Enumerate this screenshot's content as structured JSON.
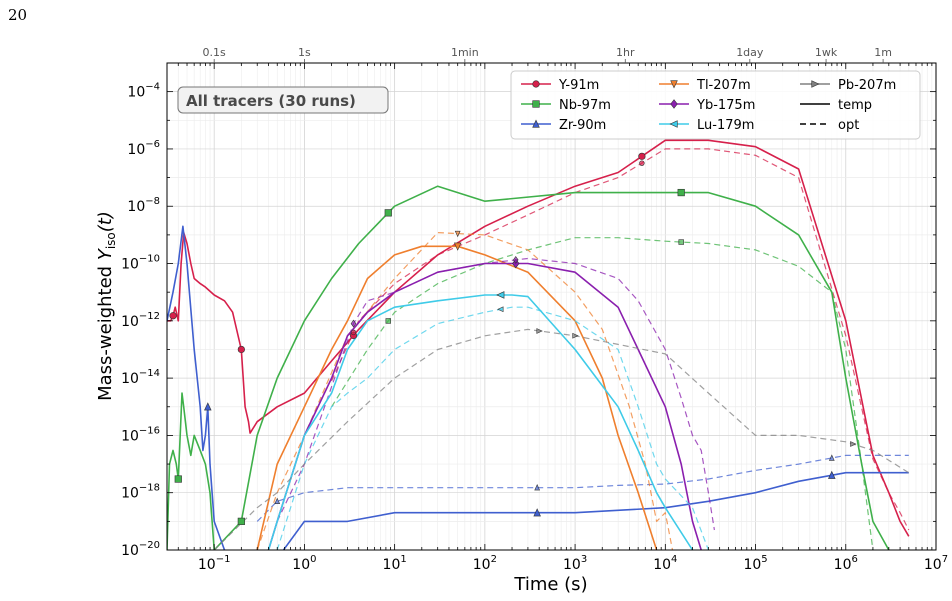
{
  "page_number": "20",
  "chart_data": {
    "type": "line",
    "annotation": "All tracers (30 runs)",
    "xlabel": "Time (s)",
    "ylabel_main": "Mass-weighted ",
    "ylabel_var": "Y",
    "ylabel_sub": "iso",
    "ylabel_arg": "(t)",
    "x_scale": "log",
    "y_scale": "log",
    "xlim": [
      0.03,
      10000000
    ],
    "ylim": [
      1e-20,
      0.001
    ],
    "grid": true,
    "legend_position": "top-right",
    "x_ticks": [
      {
        "value": 0.1,
        "base": "10",
        "exp": "−1"
      },
      {
        "value": 1,
        "base": "10",
        "exp": "0"
      },
      {
        "value": 10,
        "base": "10",
        "exp": "1"
      },
      {
        "value": 100,
        "base": "10",
        "exp": "2"
      },
      {
        "value": 1000,
        "base": "10",
        "exp": "3"
      },
      {
        "value": 10000,
        "base": "10",
        "exp": "4"
      },
      {
        "value": 100000,
        "base": "10",
        "exp": "5"
      },
      {
        "value": 1000000,
        "base": "10",
        "exp": "6"
      },
      {
        "value": 10000000,
        "base": "10",
        "exp": "7"
      }
    ],
    "y_ticks": [
      {
        "value": 1e-20,
        "base": "10",
        "exp": "−20"
      },
      {
        "value": 1e-18,
        "base": "10",
        "exp": "−18"
      },
      {
        "value": 1e-16,
        "base": "10",
        "exp": "−16"
      },
      {
        "value": 1e-14,
        "base": "10",
        "exp": "−14"
      },
      {
        "value": 1e-12,
        "base": "10",
        "exp": "−12"
      },
      {
        "value": 1e-10,
        "base": "10",
        "exp": "−10"
      },
      {
        "value": 1e-08,
        "base": "10",
        "exp": "−8"
      },
      {
        "value": 1e-06,
        "base": "10",
        "exp": "−6"
      },
      {
        "value": 0.0001,
        "base": "10",
        "exp": "−4"
      }
    ],
    "top_axis": [
      {
        "label": "0.1s",
        "value": 0.1
      },
      {
        "label": "1s",
        "value": 1
      },
      {
        "label": "1min",
        "value": 60
      },
      {
        "label": "1hr",
        "value": 3600
      },
      {
        "label": "1day",
        "value": 86400
      },
      {
        "label": "1wk",
        "value": 604800
      },
      {
        "label": "1m",
        "value": 2592000
      }
    ],
    "legend": [
      {
        "name": "Y-91m",
        "color": "#d6204b",
        "marker": "circle",
        "style": "solid"
      },
      {
        "name": "Nb-97m",
        "color": "#3fb04a",
        "marker": "square",
        "style": "solid"
      },
      {
        "name": "Zr-90m",
        "color": "#3f5fcf",
        "marker": "triangle-up",
        "style": "solid"
      },
      {
        "name": "Tl-207m",
        "color": "#ef7f2e",
        "marker": "triangle-down",
        "style": "solid"
      },
      {
        "name": "Yb-175m",
        "color": "#8a1fae",
        "marker": "diamond",
        "style": "solid"
      },
      {
        "name": "Lu-179m",
        "color": "#3fcbe8",
        "marker": "triangle-left",
        "style": "solid"
      },
      {
        "name": "Pb-207m",
        "color": "#808080",
        "marker": "triangle-right",
        "style": "solid"
      },
      {
        "name": "temp",
        "color": "#000000",
        "marker": "none",
        "style": "solid"
      },
      {
        "name": "opt",
        "color": "#000000",
        "marker": "none",
        "style": "dashed"
      }
    ],
    "series": [
      {
        "name": "Y-91m",
        "variant": "temp",
        "color": "#d6204b",
        "marker": "circle",
        "marker_at": [
          0.035,
          0.2,
          3.5,
          5500
        ],
        "x": [
          0.03,
          0.033,
          0.035,
          0.037,
          0.04,
          0.043,
          0.046,
          0.05,
          0.055,
          0.06,
          0.07,
          0.08,
          0.1,
          0.13,
          0.16,
          0.2,
          0.22,
          0.24,
          0.25,
          0.3,
          0.5,
          1,
          2,
          4,
          10,
          30,
          100,
          300,
          1000,
          3000,
          10000,
          30000,
          100000,
          300000,
          1000000,
          2000000,
          3000000,
          4000000,
          5000000
        ],
        "y": [
          1e-12,
          1e-12,
          1.5e-12,
          3e-12,
          1e-12,
          1e-10,
          1.2e-09,
          5e-10,
          1e-10,
          3e-11,
          2e-11,
          1.5e-11,
          8e-12,
          5e-12,
          2e-12,
          1e-13,
          1e-15,
          3e-16,
          1.2e-16,
          3e-16,
          1e-15,
          3e-15,
          4e-14,
          5e-13,
          1e-11,
          2e-10,
          2e-09,
          1e-08,
          5e-08,
          1.5e-07,
          2e-06,
          2e-06,
          1.2e-06,
          2e-07,
          1e-12,
          2e-17,
          1e-18,
          1e-19,
          3e-20
        ]
      },
      {
        "name": "Y-91m",
        "variant": "opt",
        "color": "#d6204b",
        "marker": "circle",
        "marker_at": [
          3.5,
          5500
        ],
        "x": [
          2,
          4,
          10,
          30,
          100,
          300,
          1000,
          3000,
          10000,
          30000,
          100000,
          300000,
          1000000,
          2000000,
          3000000,
          4000000,
          5000000
        ],
        "y": [
          8e-15,
          1e-12,
          2e-11,
          2e-10,
          1e-09,
          5e-09,
          3e-08,
          1e-07,
          1e-06,
          1e-06,
          6e-07,
          1e-07,
          3e-13,
          1.5e-17,
          1e-18,
          2e-19,
          5e-20
        ]
      },
      {
        "name": "Nb-97m",
        "variant": "temp",
        "color": "#3fb04a",
        "marker": "square",
        "marker_at": [
          0.04,
          0.2,
          8.5,
          15000
        ],
        "x": [
          0.03,
          0.032,
          0.035,
          0.038,
          0.04,
          0.042,
          0.044,
          0.046,
          0.05,
          0.055,
          0.06,
          0.07,
          0.08,
          0.09,
          0.1,
          0.2,
          0.3,
          0.5,
          1,
          2,
          4,
          10,
          30,
          100,
          1000,
          10000,
          30000,
          100000,
          300000,
          700000,
          1000000,
          1500000,
          2000000,
          3000000
        ],
        "y": [
          1e-20,
          1e-17,
          3e-17,
          1e-17,
          3e-18,
          1e-16,
          3e-15,
          1e-15,
          1e-16,
          2e-17,
          1e-16,
          3e-17,
          1e-17,
          1e-18,
          1e-20,
          1e-19,
          1e-16,
          1e-14,
          1e-12,
          3e-11,
          5e-10,
          1e-08,
          5e-08,
          1.5e-08,
          3e-08,
          3e-08,
          3e-08,
          1e-08,
          1e-09,
          1e-11,
          1e-14,
          1e-17,
          1e-19,
          1e-20
        ]
      },
      {
        "name": "Nb-97m",
        "variant": "opt",
        "color": "#3fb04a",
        "marker": "square",
        "marker_at": [
          8.5,
          15000
        ],
        "x": [
          2,
          5,
          10,
          30,
          100,
          300,
          1000,
          3000,
          10000,
          30000,
          100000,
          300000,
          700000,
          1000000,
          1500000,
          2000000
        ],
        "y": [
          1e-15,
          1e-13,
          2e-12,
          2e-11,
          1e-10,
          3e-10,
          8e-10,
          8e-10,
          6e-10,
          5e-10,
          3e-10,
          8e-11,
          1e-11,
          1e-13,
          1e-17,
          1e-20
        ]
      },
      {
        "name": "Zr-90m",
        "variant": "temp",
        "color": "#3f5fcf",
        "marker": "triangle-up",
        "marker_at": [
          0.085,
          0.5,
          380,
          700000
        ],
        "x": [
          0.03,
          0.035,
          0.04,
          0.045,
          0.05,
          0.06,
          0.07,
          0.075,
          0.08,
          0.085,
          0.09,
          0.1,
          0.13,
          0.3,
          0.5,
          1,
          3,
          10,
          100,
          1000,
          10000,
          30000,
          100000,
          300000,
          1000000,
          5000000
        ],
        "y": [
          1e-12,
          1e-11,
          1e-10,
          2e-09,
          1e-10,
          1e-13,
          1e-15,
          3e-17,
          1e-16,
          1e-15,
          1e-17,
          1e-19,
          1e-20,
          5e-21,
          5e-21,
          1e-19,
          1e-19,
          2e-19,
          2e-19,
          2e-19,
          3e-19,
          5e-19,
          1e-18,
          2.5e-18,
          5e-18,
          5e-18
        ]
      },
      {
        "name": "Zr-90m",
        "variant": "opt",
        "color": "#3f5fcf",
        "marker": "triangle-up",
        "marker_at": [
          0.5,
          380,
          700000
        ],
        "x": [
          0.3,
          0.5,
          1,
          3,
          10,
          100,
          1000,
          3000,
          10000,
          30000,
          100000,
          300000,
          1000000,
          5000000
        ],
        "y": [
          1e-19,
          5e-19,
          1e-18,
          1.5e-18,
          1.5e-18,
          1.5e-18,
          1.5e-18,
          1.8e-18,
          2e-18,
          3e-18,
          6e-18,
          1e-17,
          2e-17,
          2e-17
        ]
      },
      {
        "name": "Tl-207m",
        "variant": "temp",
        "color": "#ef7f2e",
        "marker": "triangle-down",
        "marker_at": [
          50
        ],
        "x": [
          0.3,
          0.5,
          1,
          2,
          3,
          5,
          10,
          20,
          50,
          100,
          300,
          1000,
          2000,
          3000,
          5000,
          8000,
          10000
        ],
        "y": [
          1e-20,
          1e-17,
          1e-15,
          1e-13,
          1e-12,
          3e-11,
          2e-10,
          4e-10,
          4e-10,
          2e-10,
          5e-11,
          1e-12,
          1e-14,
          1e-16,
          1e-18,
          1e-20,
          5e-21
        ]
      },
      {
        "name": "Tl-207m",
        "variant": "opt",
        "color": "#ef7f2e",
        "marker": "triangle-down",
        "marker_at": [
          50
        ],
        "x": [
          0.3,
          0.5,
          1,
          3,
          10,
          30,
          100,
          300,
          1000,
          2000,
          4000,
          6000,
          8000,
          10000,
          12000
        ],
        "y": [
          1e-20,
          1e-18,
          1e-16,
          3e-13,
          3e-11,
          1.2e-09,
          1e-09,
          3e-10,
          1e-11,
          5e-13,
          1e-15,
          1e-17,
          1e-19,
          2e-19,
          1e-20
        ]
      },
      {
        "name": "Yb-175m",
        "variant": "temp",
        "color": "#8a1fae",
        "marker": "diamond",
        "marker_at": [
          220
        ],
        "x": [
          0.4,
          0.5,
          1,
          2,
          3,
          5,
          10,
          30,
          100,
          300,
          1000,
          3000,
          5000,
          10000,
          15000,
          20000,
          25000
        ],
        "y": [
          1e-20,
          1e-19,
          1e-16,
          1e-14,
          3e-13,
          2e-12,
          1e-11,
          5e-11,
          1e-10,
          1e-10,
          5e-11,
          3e-12,
          1e-13,
          1e-15,
          1e-17,
          1e-19,
          1e-20
        ]
      },
      {
        "name": "Yb-175m",
        "variant": "opt",
        "color": "#8a1fae",
        "marker": "diamond",
        "marker_at": [
          3.5,
          220
        ],
        "x": [
          0.4,
          0.5,
          1,
          2,
          3.5,
          5,
          10,
          30,
          100,
          300,
          1000,
          3000,
          5000,
          10000,
          15000,
          20000,
          25000,
          30000,
          35000
        ],
        "y": [
          1e-20,
          1e-19,
          1e-17,
          5e-15,
          8e-13,
          5e-12,
          1e-11,
          5e-11,
          1e-10,
          1.5e-10,
          1e-10,
          3e-11,
          5e-12,
          1e-13,
          2e-15,
          1e-16,
          3e-17,
          1e-18,
          5e-20
        ]
      },
      {
        "name": "Lu-179m",
        "variant": "temp",
        "color": "#3fcbe8",
        "marker": "triangle-left",
        "marker_at": [
          150
        ],
        "x": [
          0.4,
          0.5,
          1,
          2,
          3,
          5,
          10,
          30,
          100,
          200,
          300,
          1000,
          3000,
          5000,
          8000,
          10000,
          20000,
          30000
        ],
        "y": [
          1e-20,
          1e-19,
          1e-16,
          3e-15,
          1e-13,
          1e-12,
          3e-12,
          5e-12,
          8e-12,
          8e-12,
          7e-12,
          1e-13,
          1e-15,
          3e-17,
          1e-18,
          3e-19,
          1e-20,
          5e-21
        ]
      },
      {
        "name": "Lu-179m",
        "variant": "opt",
        "color": "#3fcbe8",
        "marker": "triangle-left",
        "marker_at": [
          150
        ],
        "x": [
          0.5,
          1,
          2,
          3,
          5,
          10,
          30,
          100,
          200,
          300,
          1000,
          3000,
          5000,
          8000,
          10000,
          20000,
          30000
        ],
        "y": [
          1e-20,
          1e-17,
          1e-15,
          3e-15,
          1e-14,
          1e-13,
          8e-13,
          2e-12,
          3e-12,
          3e-12,
          1e-12,
          1e-13,
          1e-15,
          1e-17,
          3e-18,
          3e-19,
          1e-20
        ]
      },
      {
        "name": "Pb-207m",
        "variant": "opt",
        "color": "#808080",
        "marker": "triangle-right",
        "marker_at": [
          400,
          1000,
          1200000
        ],
        "x": [
          0.1,
          0.3,
          0.5,
          1,
          3,
          10,
          30,
          100,
          300,
          1000,
          3000,
          10000,
          30000,
          100000,
          300000,
          1000000,
          2000000,
          5000000
        ],
        "y": [
          1e-20,
          3e-19,
          1e-18,
          1e-17,
          3e-16,
          1e-14,
          1e-13,
          3e-13,
          5e-13,
          3e-13,
          1.5e-13,
          7e-14,
          3e-15,
          1e-16,
          1e-16,
          6e-17,
          3e-17,
          5e-18
        ]
      }
    ]
  }
}
